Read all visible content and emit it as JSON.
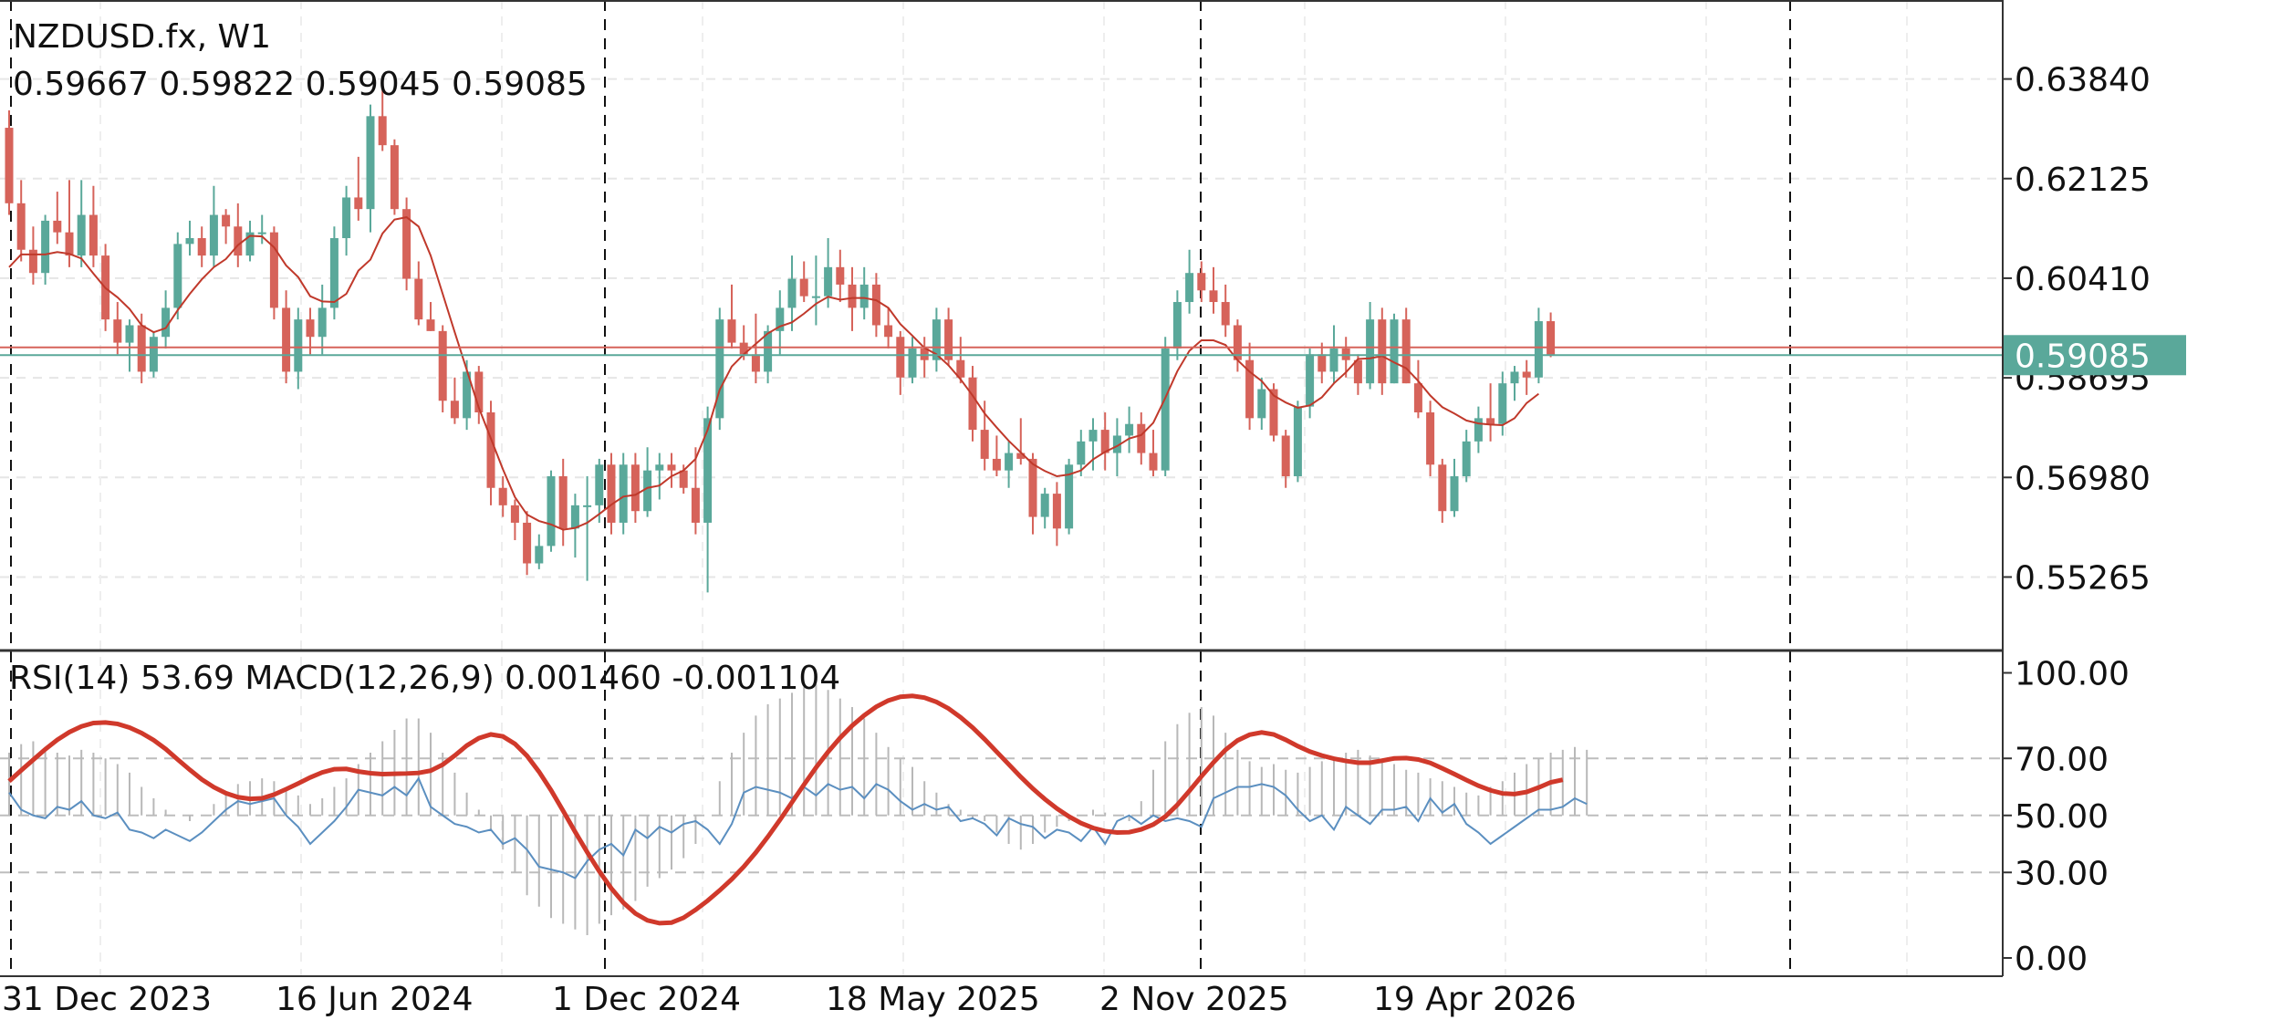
{
  "header": {
    "symbol": "NZDUSD.fx, W1",
    "ohlc": "0.59667 0.59822 0.59045 0.59085"
  },
  "indicator_header": "RSI(14) 53.69 MACD(12,26,9) 0.001460 -0.001104",
  "colors": {
    "bull": "#5aa89a",
    "bear": "#d6635a",
    "ma": "#c0392b",
    "rsi": "#5b8fc0",
    "macd_signal": "#d0392b",
    "macd_hist": "#b8b8b8",
    "price_label_bg": "#5aa89a",
    "ask_line": "#d6635a",
    "bid_line": "#5aa89a",
    "grid": "#e6e6e6",
    "separator": "#111111"
  },
  "chart_data": [
    {
      "type": "candlestick",
      "timeframe": "W1",
      "ylim": [
        0.54,
        0.652
      ],
      "ticks": [
        "0.63840",
        "0.62125",
        "0.60410",
        "0.58695",
        "0.56980",
        "0.55265"
      ],
      "current_price_label": "0.59085",
      "current_bid": 0.59085,
      "current_ask": 0.5922,
      "x_labels": [
        "31 Dec 2023",
        "16 Jun 2024",
        "1 Dec 2024",
        "18 May 2025",
        "2 Nov 2025",
        "19 Apr 2026"
      ],
      "ohlc": [
        [
          0.63,
          0.633,
          0.615,
          0.617
        ],
        [
          0.617,
          0.621,
          0.607,
          0.609
        ],
        [
          0.609,
          0.613,
          0.603,
          0.605
        ],
        [
          0.605,
          0.615,
          0.603,
          0.614
        ],
        [
          0.614,
          0.619,
          0.61,
          0.612
        ],
        [
          0.612,
          0.621,
          0.606,
          0.608
        ],
        [
          0.608,
          0.621,
          0.606,
          0.615
        ],
        [
          0.615,
          0.62,
          0.606,
          0.608
        ],
        [
          0.608,
          0.61,
          0.595,
          0.597
        ],
        [
          0.597,
          0.6,
          0.591,
          0.593
        ],
        [
          0.593,
          0.597,
          0.588,
          0.596
        ],
        [
          0.596,
          0.598,
          0.586,
          0.588
        ],
        [
          0.588,
          0.595,
          0.587,
          0.594
        ],
        [
          0.594,
          0.602,
          0.592,
          0.599
        ],
        [
          0.599,
          0.612,
          0.597,
          0.61
        ],
        [
          0.61,
          0.614,
          0.608,
          0.611
        ],
        [
          0.611,
          0.613,
          0.606,
          0.608
        ],
        [
          0.608,
          0.62,
          0.606,
          0.615
        ],
        [
          0.615,
          0.616,
          0.61,
          0.613
        ],
        [
          0.613,
          0.617,
          0.606,
          0.608
        ],
        [
          0.608,
          0.614,
          0.607,
          0.612
        ],
        [
          0.612,
          0.615,
          0.61,
          0.612
        ],
        [
          0.612,
          0.613,
          0.597,
          0.599
        ],
        [
          0.599,
          0.602,
          0.586,
          0.588
        ],
        [
          0.588,
          0.599,
          0.585,
          0.597
        ],
        [
          0.597,
          0.599,
          0.591,
          0.594
        ],
        [
          0.594,
          0.603,
          0.591,
          0.599
        ],
        [
          0.599,
          0.613,
          0.597,
          0.611
        ],
        [
          0.611,
          0.62,
          0.608,
          0.618
        ],
        [
          0.618,
          0.625,
          0.614,
          0.616
        ],
        [
          0.616,
          0.634,
          0.612,
          0.632
        ],
        [
          0.632,
          0.638,
          0.626,
          0.627
        ],
        [
          0.627,
          0.628,
          0.615,
          0.616
        ],
        [
          0.616,
          0.618,
          0.602,
          0.604
        ],
        [
          0.604,
          0.607,
          0.596,
          0.597
        ],
        [
          0.597,
          0.6,
          0.595,
          0.595
        ],
        [
          0.595,
          0.596,
          0.581,
          0.583
        ],
        [
          0.583,
          0.587,
          0.579,
          0.58
        ],
        [
          0.58,
          0.59,
          0.578,
          0.588
        ],
        [
          0.588,
          0.589,
          0.579,
          0.581
        ],
        [
          0.581,
          0.583,
          0.565,
          0.568
        ],
        [
          0.568,
          0.57,
          0.563,
          0.565
        ],
        [
          0.565,
          0.566,
          0.559,
          0.562
        ],
        [
          0.562,
          0.564,
          0.553,
          0.555
        ],
        [
          0.555,
          0.56,
          0.554,
          0.558
        ],
        [
          0.558,
          0.571,
          0.557,
          0.57
        ],
        [
          0.57,
          0.573,
          0.558,
          0.561
        ],
        [
          0.561,
          0.567,
          0.556,
          0.565
        ],
        [
          0.565,
          0.57,
          0.552,
          0.565
        ],
        [
          0.565,
          0.573,
          0.562,
          0.572
        ],
        [
          0.572,
          0.574,
          0.56,
          0.562
        ],
        [
          0.562,
          0.574,
          0.56,
          0.572
        ],
        [
          0.572,
          0.574,
          0.562,
          0.564
        ],
        [
          0.564,
          0.575,
          0.563,
          0.571
        ],
        [
          0.571,
          0.574,
          0.566,
          0.572
        ],
        [
          0.572,
          0.574,
          0.568,
          0.571
        ],
        [
          0.571,
          0.572,
          0.567,
          0.568
        ],
        [
          0.568,
          0.575,
          0.56,
          0.562
        ],
        [
          0.562,
          0.582,
          0.55,
          0.58
        ],
        [
          0.58,
          0.599,
          0.578,
          0.597
        ],
        [
          0.597,
          0.603,
          0.592,
          0.593
        ],
        [
          0.593,
          0.596,
          0.59,
          0.591
        ],
        [
          0.591,
          0.598,
          0.586,
          0.588
        ],
        [
          0.588,
          0.596,
          0.586,
          0.595
        ],
        [
          0.595,
          0.602,
          0.591,
          0.599
        ],
        [
          0.599,
          0.608,
          0.595,
          0.604
        ],
        [
          0.604,
          0.607,
          0.6,
          0.601
        ],
        [
          0.601,
          0.608,
          0.596,
          0.601
        ],
        [
          0.601,
          0.611,
          0.599,
          0.606
        ],
        [
          0.606,
          0.609,
          0.6,
          0.603
        ],
        [
          0.603,
          0.606,
          0.595,
          0.599
        ],
        [
          0.599,
          0.606,
          0.597,
          0.603
        ],
        [
          0.603,
          0.605,
          0.594,
          0.596
        ],
        [
          0.596,
          0.599,
          0.592,
          0.594
        ],
        [
          0.594,
          0.595,
          0.584,
          0.587
        ],
        [
          0.587,
          0.594,
          0.586,
          0.592
        ],
        [
          0.592,
          0.594,
          0.587,
          0.59
        ],
        [
          0.59,
          0.599,
          0.588,
          0.597
        ],
        [
          0.597,
          0.599,
          0.589,
          0.59
        ],
        [
          0.59,
          0.594,
          0.586,
          0.587
        ],
        [
          0.587,
          0.589,
          0.576,
          0.578
        ],
        [
          0.578,
          0.583,
          0.571,
          0.573
        ],
        [
          0.573,
          0.577,
          0.57,
          0.571
        ],
        [
          0.571,
          0.576,
          0.568,
          0.574
        ],
        [
          0.574,
          0.58,
          0.572,
          0.573
        ],
        [
          0.573,
          0.574,
          0.56,
          0.563
        ],
        [
          0.563,
          0.568,
          0.561,
          0.567
        ],
        [
          0.567,
          0.569,
          0.558,
          0.561
        ],
        [
          0.561,
          0.573,
          0.56,
          0.572
        ],
        [
          0.572,
          0.578,
          0.57,
          0.576
        ],
        [
          0.576,
          0.58,
          0.571,
          0.578
        ],
        [
          0.578,
          0.581,
          0.571,
          0.574
        ],
        [
          0.574,
          0.58,
          0.57,
          0.577
        ],
        [
          0.577,
          0.582,
          0.574,
          0.579
        ],
        [
          0.579,
          0.581,
          0.572,
          0.574
        ],
        [
          0.574,
          0.578,
          0.57,
          0.571
        ],
        [
          0.571,
          0.594,
          0.57,
          0.592
        ],
        [
          0.592,
          0.602,
          0.59,
          0.6
        ],
        [
          0.6,
          0.609,
          0.598,
          0.605
        ],
        [
          0.605,
          0.607,
          0.6,
          0.602
        ],
        [
          0.602,
          0.606,
          0.598,
          0.6
        ],
        [
          0.6,
          0.603,
          0.594,
          0.596
        ],
        [
          0.596,
          0.597,
          0.588,
          0.59
        ],
        [
          0.59,
          0.593,
          0.578,
          0.58
        ],
        [
          0.58,
          0.587,
          0.578,
          0.585
        ],
        [
          0.585,
          0.586,
          0.576,
          0.577
        ],
        [
          0.577,
          0.578,
          0.568,
          0.57
        ],
        [
          0.57,
          0.583,
          0.569,
          0.582
        ],
        [
          0.582,
          0.592,
          0.58,
          0.591
        ],
        [
          0.591,
          0.593,
          0.586,
          0.588
        ],
        [
          0.588,
          0.596,
          0.586,
          0.592
        ],
        [
          0.592,
          0.594,
          0.587,
          0.59
        ],
        [
          0.59,
          0.591,
          0.584,
          0.586
        ],
        [
          0.586,
          0.6,
          0.585,
          0.597
        ],
        [
          0.597,
          0.599,
          0.584,
          0.586
        ],
        [
          0.586,
          0.598,
          0.586,
          0.597
        ],
        [
          0.597,
          0.599,
          0.586,
          0.586
        ],
        [
          0.586,
          0.59,
          0.58,
          0.581
        ],
        [
          0.581,
          0.583,
          0.57,
          0.572
        ],
        [
          0.572,
          0.573,
          0.562,
          0.564
        ],
        [
          0.564,
          0.573,
          0.563,
          0.57
        ],
        [
          0.57,
          0.578,
          0.569,
          0.576
        ],
        [
          0.576,
          0.582,
          0.574,
          0.58
        ],
        [
          0.58,
          0.586,
          0.576,
          0.579
        ],
        [
          0.579,
          0.588,
          0.577,
          0.586
        ],
        [
          0.586,
          0.589,
          0.583,
          0.588
        ],
        [
          0.588,
          0.59,
          0.584,
          0.587
        ],
        [
          0.587,
          0.599,
          0.586,
          0.5967
        ],
        [
          0.5967,
          0.5982,
          0.5905,
          0.5909
        ]
      ],
      "ma": [
        0.606,
        0.6082,
        0.6082,
        0.6082,
        0.6086,
        0.6083,
        0.6075,
        0.6049,
        0.6024,
        0.6008,
        0.5988,
        0.596,
        0.5948,
        0.5955,
        0.5986,
        0.6014,
        0.6039,
        0.606,
        0.6074,
        0.6098,
        0.6114,
        0.6113,
        0.6094,
        0.6063,
        0.6043,
        0.601,
        0.6001,
        0.6,
        0.6014,
        0.6054,
        0.6073,
        0.6118,
        0.6142,
        0.6146,
        0.613,
        0.608,
        0.6014,
        0.5948,
        0.5883,
        0.5818,
        0.5765,
        0.5712,
        0.5664,
        0.5634,
        0.5623,
        0.5617,
        0.5608,
        0.5611,
        0.562,
        0.5635,
        0.5651,
        0.5665,
        0.5668,
        0.568,
        0.5684,
        0.57,
        0.571,
        0.573,
        0.578,
        0.5849,
        0.5889,
        0.591,
        0.5928,
        0.5946,
        0.5958,
        0.5965,
        0.598,
        0.5997,
        0.6009,
        0.6004,
        0.6007,
        0.6007,
        0.6003,
        0.599,
        0.5962,
        0.5942,
        0.5921,
        0.591,
        0.5891,
        0.5867,
        0.5839,
        0.5808,
        0.5784,
        0.5761,
        0.5741,
        0.5721,
        0.5709,
        0.57,
        0.5703,
        0.571,
        0.5729,
        0.5742,
        0.5752,
        0.5765,
        0.5771,
        0.5792,
        0.5835,
        0.5881,
        0.5916,
        0.5934,
        0.5934,
        0.5926,
        0.59,
        0.588,
        0.5864,
        0.5839,
        0.5827,
        0.5818,
        0.5822,
        0.5836,
        0.586,
        0.5879,
        0.5902,
        0.5903,
        0.5907,
        0.5896,
        0.5886,
        0.5864,
        0.5839,
        0.5819,
        0.5808,
        0.5796,
        0.5791,
        0.5789,
        0.5788,
        0.58,
        0.5826,
        0.5842
      ]
    },
    {
      "type": "line",
      "indicator": "RSI / MACD",
      "ylim": [
        0,
        100
      ],
      "ticks": [
        "100.00",
        "70.00",
        "50.00",
        "30.00",
        "0.00"
      ],
      "levels": [
        70,
        50,
        30
      ],
      "rsi": [
        58,
        52,
        50,
        49,
        53,
        52,
        55,
        50,
        49,
        51,
        45,
        44,
        42,
        45,
        43,
        41,
        44,
        48,
        52,
        55,
        54,
        55,
        56,
        50,
        46,
        40,
        44,
        48,
        53,
        59,
        58,
        57,
        60,
        57,
        63,
        53,
        50,
        47,
        46,
        44,
        45,
        40,
        42,
        38,
        32,
        31,
        30,
        28,
        34,
        38,
        40,
        36,
        45,
        42,
        46,
        44,
        47,
        48,
        45,
        40,
        47,
        58,
        60,
        59,
        58,
        56,
        60,
        57,
        61,
        59,
        60,
        56,
        61,
        59,
        55,
        52,
        54,
        52,
        53,
        48,
        49,
        47,
        43,
        49,
        47,
        46,
        42,
        45,
        44,
        41,
        46,
        40,
        48,
        50,
        47,
        50,
        48,
        49,
        48,
        46,
        56,
        58,
        60,
        60,
        61,
        60,
        57,
        52,
        48,
        50,
        45,
        53,
        50,
        47,
        52,
        52,
        53,
        48,
        56,
        51,
        54,
        47,
        44,
        40,
        43,
        46,
        49,
        52,
        52,
        53,
        56,
        54
      ],
      "macd_signal": [
        62,
        65.8,
        69.5,
        73.2,
        76.5,
        79.2,
        81.2,
        82.4,
        82.6,
        82.1,
        80.8,
        78.9,
        76.4,
        73.3,
        69.6,
        66,
        62.6,
        59.9,
        57.8,
        56.4,
        55.8,
        56,
        57.3,
        59.2,
        61.2,
        63.3,
        65.1,
        66.2,
        66.3,
        65.4,
        64.8,
        64.5,
        64.6,
        64.7,
        64.9,
        65.7,
        67.8,
        71,
        74.5,
        77.1,
        78.4,
        77.7,
        75.1,
        70.9,
        65.3,
        58.8,
        51.6,
        44.2,
        37.1,
        30.4,
        24.4,
        19.4,
        15.6,
        13.2,
        12.2,
        12.4,
        14.1,
        16.9,
        20.1,
        23.7,
        27.6,
        32,
        37,
        42.5,
        48.4,
        54.6,
        60.8,
        66.8,
        72.3,
        77.2,
        81.5,
        85.1,
        88.1,
        90.3,
        91.6,
        91.9,
        91.3,
        89.8,
        87.5,
        84.4,
        80.8,
        76.7,
        72.3,
        67.9,
        63.5,
        59.4,
        55.7,
        52.4,
        49.6,
        47.3,
        45.6,
        44.5,
        44,
        44.1,
        45.1,
        46.8,
        49.6,
        53.7,
        58.6,
        63.7,
        68.6,
        73,
        76.3,
        78.3,
        79.1,
        78.4,
        76.5,
        74.3,
        72.4,
        71,
        69.9,
        69.1,
        68.5,
        68.5,
        69.2,
        70,
        70.1,
        69.6,
        68.4,
        66.5,
        64.5,
        62.4,
        60.4,
        58.8,
        57.7,
        57.5,
        58.2,
        59.8,
        61.6,
        62.5
      ],
      "macd_hist": [
        72,
        75,
        76,
        74,
        72,
        71,
        73,
        72,
        70,
        68,
        65,
        60,
        56,
        52,
        50,
        48,
        50,
        54,
        58,
        61,
        62,
        63,
        62,
        59,
        57,
        54,
        56,
        60,
        63,
        68,
        72,
        76,
        80,
        84,
        84,
        79,
        72,
        65,
        58,
        52,
        45,
        38,
        30,
        22,
        18,
        14,
        12,
        10,
        8,
        12,
        15,
        17,
        20,
        25,
        28,
        31,
        35,
        40,
        50,
        62,
        72,
        79,
        85,
        89,
        91,
        93,
        95,
        96,
        94,
        91,
        88,
        84,
        79,
        74,
        70,
        67,
        62,
        58,
        54,
        52,
        49,
        48,
        44,
        40,
        38,
        40,
        44,
        46,
        48,
        50,
        52,
        51,
        50,
        48,
        55,
        66,
        76,
        82,
        86,
        88,
        85,
        79,
        73,
        69,
        67,
        68,
        66,
        65,
        67,
        69,
        70,
        72,
        73,
        71,
        69,
        68,
        66,
        65,
        63,
        62,
        60,
        58,
        57,
        60,
        62,
        65,
        68,
        70,
        72,
        73,
        74,
        73
      ]
    }
  ]
}
